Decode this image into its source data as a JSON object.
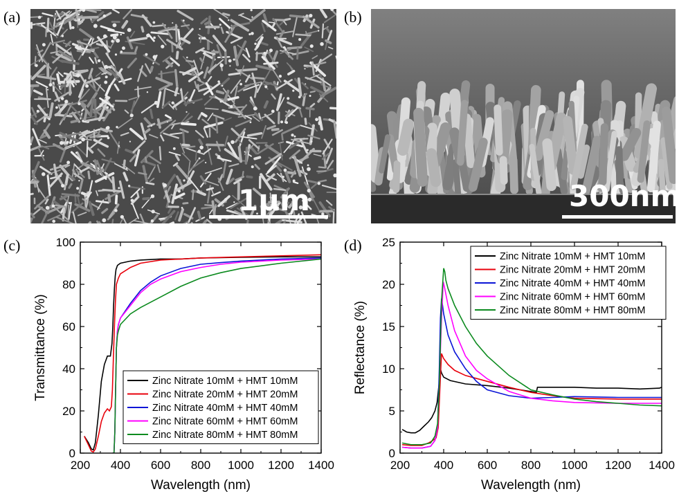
{
  "panels": {
    "a": {
      "label": "(a)",
      "scale_text": "1μm"
    },
    "b": {
      "label": "(b)",
      "scale_text": "300nm"
    },
    "c": {
      "label": "(c)"
    },
    "d": {
      "label": "(d)"
    }
  },
  "colors": {
    "s10": "#000000",
    "s20": "#e8000b",
    "s40": "#0a14d6",
    "s60": "#ff00ff",
    "s80": "#0b8a1e"
  },
  "chart_data": [
    {
      "id": "c",
      "type": "line",
      "xlabel": "Wavelength (nm)",
      "ylabel": "Transmittance (%)",
      "xlim": [
        200,
        1400
      ],
      "ylim": [
        0,
        100
      ],
      "xticks": [
        200,
        400,
        600,
        800,
        1000,
        1200,
        1400
      ],
      "yticks": [
        0,
        20,
        40,
        60,
        80,
        100
      ],
      "legend_position": "bottom-right",
      "series": [
        {
          "name": "Zinc Nitrate 10mM + HMT 10mM",
          "color": "#000000",
          "x": [
            220,
            240,
            255,
            265,
            275,
            290,
            305,
            320,
            335,
            350,
            358,
            362,
            366,
            370,
            374,
            378,
            385,
            400,
            450,
            500,
            600,
            700,
            800,
            1000,
            1200,
            1400
          ],
          "y": [
            8,
            5,
            2,
            1.5,
            5,
            18,
            34,
            42,
            46,
            46,
            52,
            60,
            70,
            78,
            84,
            87,
            89,
            90,
            91,
            91.5,
            92,
            92,
            92.5,
            92.8,
            93,
            93
          ]
        },
        {
          "name": "Zinc Nitrate 20mM + HMT 20mM",
          "color": "#e8000b",
          "x": [
            220,
            240,
            255,
            265,
            275,
            290,
            305,
            320,
            335,
            345,
            355,
            360,
            365,
            370,
            375,
            380,
            390,
            400,
            450,
            500,
            600,
            700,
            800,
            1000,
            1200,
            1400
          ],
          "y": [
            8,
            4,
            1,
            0.5,
            2,
            8,
            15,
            19,
            21,
            20,
            22,
            30,
            45,
            60,
            72,
            80,
            83,
            85,
            88,
            90,
            91.5,
            92,
            92.5,
            93,
            93.5,
            94
          ]
        },
        {
          "name": "Zinc Nitrate 40mM + HMT 40mM",
          "color": "#0a14d6",
          "x": [
            360,
            368,
            372,
            376,
            380,
            385,
            390,
            400,
            450,
            500,
            550,
            600,
            700,
            800,
            900,
            1000,
            1200,
            1400
          ],
          "y": [
            0,
            0,
            10,
            30,
            50,
            58,
            61,
            64,
            71,
            77,
            81,
            84,
            87.5,
            89.5,
            90.3,
            91,
            92,
            92.5
          ]
        },
        {
          "name": "Zinc Nitrate 60mM + HMT 60mM",
          "color": "#ff00ff",
          "x": [
            360,
            368,
            372,
            376,
            380,
            385,
            390,
            400,
            450,
            500,
            550,
            600,
            700,
            800,
            900,
            1000,
            1200,
            1400
          ],
          "y": [
            0,
            0,
            10,
            30,
            50,
            58,
            61,
            64,
            70,
            76,
            80,
            82.5,
            86,
            88,
            89.5,
            90.5,
            91.5,
            92
          ]
        },
        {
          "name": "Zinc Nitrate 80mM + HMT 80mM",
          "color": "#0b8a1e",
          "x": [
            360,
            368,
            372,
            376,
            380,
            385,
            390,
            400,
            450,
            500,
            600,
            700,
            800,
            900,
            1000,
            1200,
            1400
          ],
          "y": [
            0,
            0,
            10,
            30,
            50,
            56,
            58,
            61,
            66,
            69,
            74,
            79,
            83,
            85.5,
            87.5,
            90,
            92
          ]
        }
      ]
    },
    {
      "id": "d",
      "type": "line",
      "xlabel": "Wavelength (nm)",
      "ylabel": "Reflectance (%)",
      "xlim": [
        200,
        1400
      ],
      "ylim": [
        0,
        25
      ],
      "xticks": [
        200,
        400,
        600,
        800,
        1000,
        1200,
        1400
      ],
      "yticks": [
        0,
        5,
        10,
        15,
        20,
        25
      ],
      "legend_position": "top-right",
      "series": [
        {
          "name": "Zinc Nitrate 10mM + HMT 10mM",
          "color": "#000000",
          "x": [
            210,
            230,
            250,
            270,
            290,
            310,
            330,
            345,
            360,
            370,
            380,
            385,
            390,
            400,
            430,
            500,
            600,
            700,
            800,
            825,
            830,
            840,
            900,
            1000,
            1100,
            1200,
            1300,
            1390,
            1400
          ],
          "y": [
            2.8,
            2.5,
            2.4,
            2.4,
            2.7,
            3.2,
            3.7,
            4.2,
            5,
            6,
            8.5,
            10,
            9.5,
            9,
            8.6,
            8.2,
            8,
            7.7,
            7.3,
            7.2,
            7.8,
            7.8,
            7.8,
            7.8,
            7.7,
            7.7,
            7.6,
            7.7,
            7.8
          ]
        },
        {
          "name": "Zinc Nitrate 20mM + HMT 20mM",
          "color": "#e8000b",
          "x": [
            210,
            250,
            300,
            330,
            350,
            365,
            375,
            385,
            390,
            395,
            400,
            420,
            450,
            500,
            600,
            700,
            800,
            900,
            1000,
            1200,
            1400
          ],
          "y": [
            1,
            0.9,
            0.9,
            1.2,
            1.5,
            1.8,
            3,
            9,
            11.8,
            11.5,
            11.2,
            10.5,
            9.8,
            9.2,
            8.5,
            7.8,
            7.2,
            6.8,
            6.5,
            6.4,
            6.4
          ]
        },
        {
          "name": "Zinc Nitrate 40mM + HMT 40mM",
          "color": "#0a14d6",
          "x": [
            210,
            250,
            300,
            340,
            360,
            372,
            380,
            385,
            390,
            395,
            400,
            420,
            450,
            500,
            550,
            600,
            700,
            800,
            900,
            1000,
            1200,
            1400
          ],
          "y": [
            0.7,
            0.6,
            0.6,
            0.8,
            1.5,
            3,
            10,
            16,
            18.3,
            17.5,
            16.5,
            14,
            12,
            10,
            8.5,
            7.5,
            6.8,
            6.5,
            6.6,
            6.7,
            6.6,
            6.6
          ]
        },
        {
          "name": "Zinc Nitrate 60mM + HMT 60mM",
          "color": "#ff00ff",
          "x": [
            210,
            250,
            300,
            340,
            360,
            372,
            380,
            390,
            398,
            405,
            420,
            450,
            500,
            550,
            600,
            700,
            800,
            900,
            1000,
            1200,
            1400
          ],
          "y": [
            0.7,
            0.6,
            0.6,
            0.8,
            1.5,
            3,
            8,
            16,
            20.3,
            19.5,
            17.5,
            14.5,
            11.5,
            9.8,
            8.8,
            7.3,
            6.5,
            6.2,
            6,
            5.9,
            5.9
          ]
        },
        {
          "name": "Zinc Nitrate 80mM + HMT 80mM",
          "color": "#0b8a1e",
          "x": [
            210,
            250,
            300,
            340,
            360,
            372,
            380,
            390,
            400,
            405,
            410,
            420,
            450,
            500,
            550,
            600,
            700,
            800,
            900,
            1000,
            1100,
            1200,
            1300,
            1400
          ],
          "y": [
            1.2,
            1,
            1,
            1.2,
            2,
            3.5,
            8,
            18,
            21.9,
            21.5,
            20.5,
            19.5,
            17.5,
            15,
            13,
            11.5,
            9.2,
            7.5,
            6.9,
            6.4,
            6.1,
            5.9,
            5.7,
            5.6
          ]
        }
      ]
    }
  ]
}
